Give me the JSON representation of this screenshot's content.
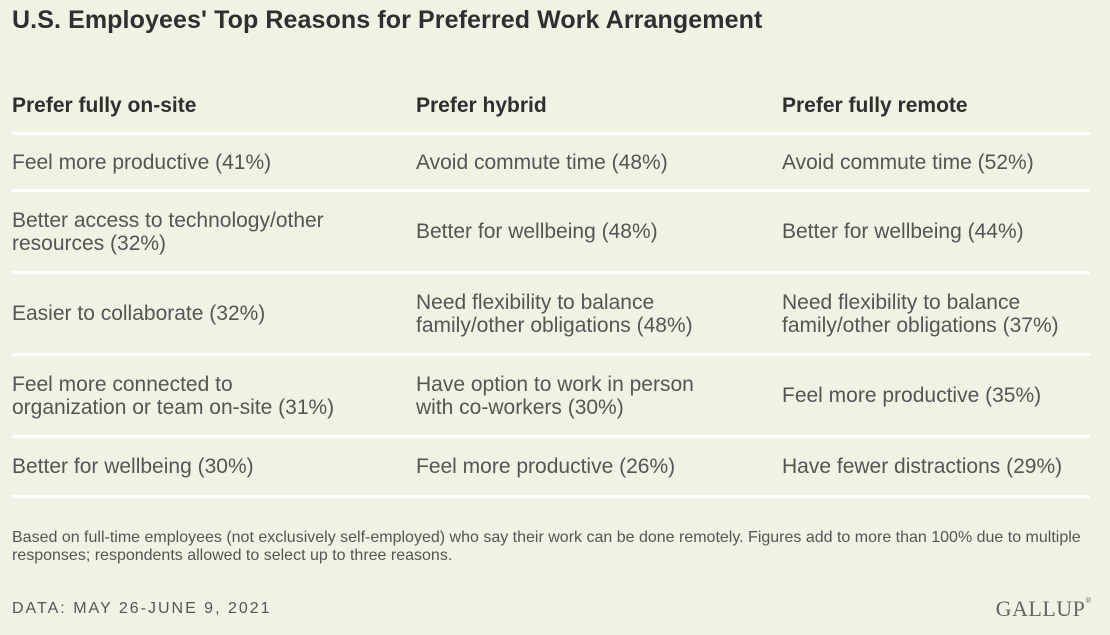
{
  "title": "U.S. Employees' Top Reasons for Preferred Work Arrangement",
  "chart_data": {
    "type": "table",
    "columns": [
      "Prefer fully on-site",
      "Prefer hybrid",
      "Prefer fully remote"
    ],
    "rows": [
      [
        "Feel more productive (41%)",
        "Avoid commute time (48%)",
        "Avoid commute time (52%)"
      ],
      [
        "Better access to technology/other resources (32%)",
        "Better for wellbeing (48%)",
        "Better for wellbeing (44%)"
      ],
      [
        "Easier to collaborate (32%)",
        "Need flexibility to balance family/other obligations (48%)",
        "Need flexibility to balance family/other obligations (37%)"
      ],
      [
        "Feel more connected to organization or team on-site (31%)",
        "Have option to work in person with co-workers (30%)",
        "Feel more productive (35%)"
      ],
      [
        "Better for wellbeing (30%)",
        "Feel more productive (26%)",
        "Have fewer distractions (29%)"
      ]
    ],
    "cells_wrapped": [
      [
        [
          "Feel more productive (41%)"
        ],
        [
          "Avoid commute time (48%)"
        ],
        [
          "Avoid commute time (52%)"
        ]
      ],
      [
        [
          "Better access to technology/other",
          "resources (32%)"
        ],
        [
          "Better for wellbeing (48%)"
        ],
        [
          "Better for wellbeing (44%)"
        ]
      ],
      [
        [
          "Easier to collaborate (32%)"
        ],
        [
          "Need flexibility to balance",
          "family/other obligations (48%)"
        ],
        [
          "Need flexibility to balance",
          "family/other obligations (37%)"
        ]
      ],
      [
        [
          "Feel more connected to",
          "organization or team on-site (31%)"
        ],
        [
          "Have option to work in person",
          "with co-workers (30%)"
        ],
        [
          "Feel more productive (35%)"
        ]
      ],
      [
        [
          "Better for wellbeing (30%)"
        ],
        [
          "Feel more productive (26%)"
        ],
        [
          "Have fewer distractions (29%)"
        ]
      ]
    ]
  },
  "note": "Based on full-time employees (not exclusively self-employed) who say their work can be done remotely. Figures add to more than 100% due to multiple responses; respondents allowed to select up to three reasons.",
  "source": "DATA: MAY 26-JUNE 9, 2021",
  "logo": "GALLUP"
}
